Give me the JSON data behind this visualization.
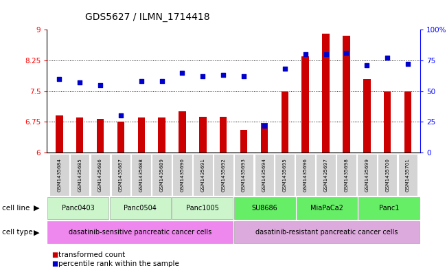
{
  "title": "GDS5627 / ILMN_1714418",
  "samples": [
    "GSM1435684",
    "GSM1435685",
    "GSM1435686",
    "GSM1435687",
    "GSM1435688",
    "GSM1435689",
    "GSM1435690",
    "GSM1435691",
    "GSM1435692",
    "GSM1435693",
    "GSM1435694",
    "GSM1435695",
    "GSM1435696",
    "GSM1435697",
    "GSM1435698",
    "GSM1435699",
    "GSM1435700",
    "GSM1435701"
  ],
  "bar_values": [
    6.9,
    6.85,
    6.83,
    6.75,
    6.85,
    6.85,
    7.0,
    6.88,
    6.88,
    6.55,
    6.72,
    7.5,
    8.35,
    8.9,
    8.85,
    7.8,
    7.5,
    7.5
  ],
  "dot_values": [
    60,
    57,
    55,
    30,
    58,
    58,
    65,
    62,
    63,
    62,
    22,
    68,
    80,
    80,
    81,
    71,
    77,
    72
  ],
  "ylim_left": [
    6,
    9
  ],
  "ylim_right": [
    0,
    100
  ],
  "yticks_left": [
    6,
    6.75,
    7.5,
    8.25,
    9
  ],
  "yticks_right": [
    0,
    25,
    50,
    75,
    100
  ],
  "ytick_labels_left": [
    "6",
    "6.75",
    "7.5",
    "8.25",
    "9"
  ],
  "ytick_labels_right": [
    "0",
    "25",
    "50",
    "75",
    "100%"
  ],
  "cell_lines": [
    {
      "label": "Panc0403",
      "start": 0,
      "end": 3,
      "color": "#ccf5cc"
    },
    {
      "label": "Panc0504",
      "start": 3,
      "end": 6,
      "color": "#ccf5cc"
    },
    {
      "label": "Panc1005",
      "start": 6,
      "end": 9,
      "color": "#ccf5cc"
    },
    {
      "label": "SU8686",
      "start": 9,
      "end": 12,
      "color": "#66ee66"
    },
    {
      "label": "MiaPaCa2",
      "start": 12,
      "end": 15,
      "color": "#66ee66"
    },
    {
      "label": "Panc1",
      "start": 15,
      "end": 18,
      "color": "#66ee66"
    }
  ],
  "cell_types": [
    {
      "label": "dasatinib-sensitive pancreatic cancer cells",
      "start": 0,
      "end": 9,
      "color": "#ee88ee"
    },
    {
      "label": "dasatinib-resistant pancreatic cancer cells",
      "start": 9,
      "end": 18,
      "color": "#ddaadd"
    }
  ],
  "bar_color": "#cc0000",
  "dot_color": "#0000cc",
  "legend_bar_label": "transformed count",
  "legend_dot_label": "percentile rank within the sample",
  "cell_line_label": "cell line",
  "cell_type_label": "cell type"
}
